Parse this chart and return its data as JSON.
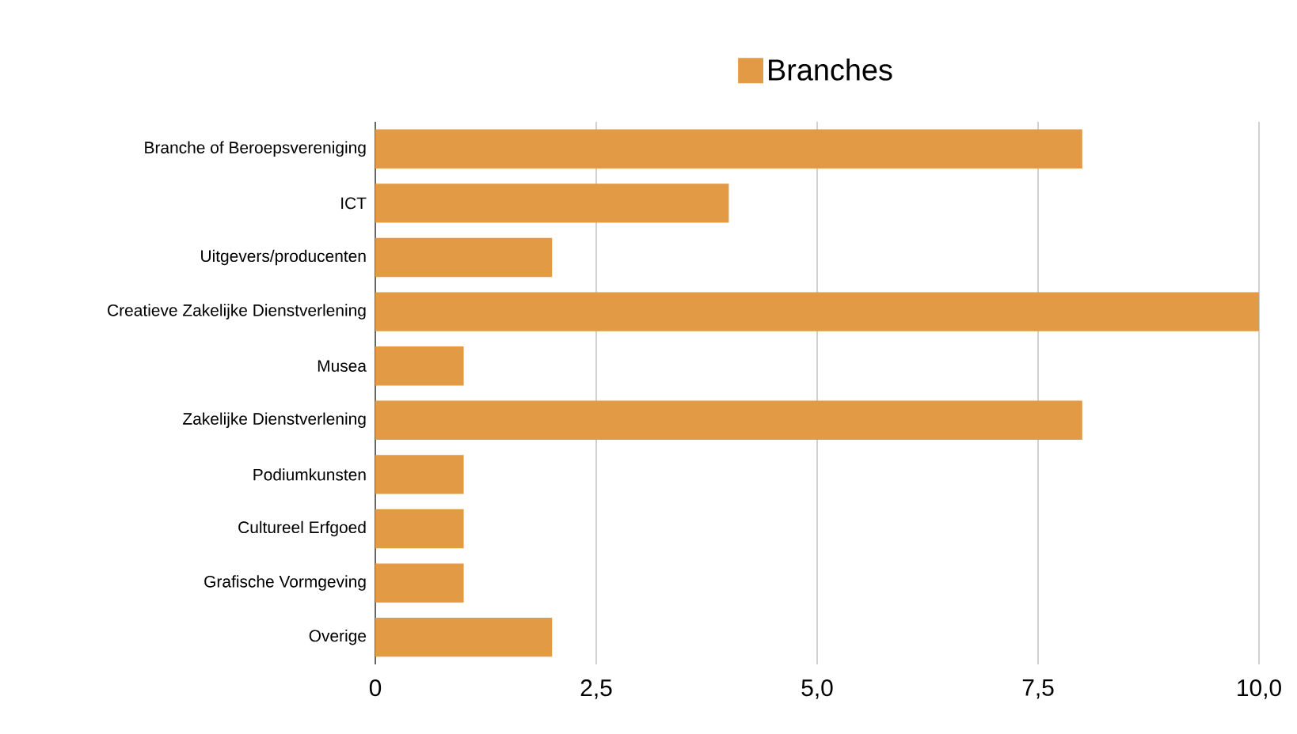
{
  "chart_data": {
    "type": "bar",
    "orientation": "horizontal",
    "categories": [
      "Branche of Beroepsvereniging",
      "ICT",
      "Uitgevers/producenten",
      "Creatieve Zakelijke Dienstverlening",
      "Musea",
      "Zakelijke Dienstverlening",
      "Podiumkunsten",
      "Cultureel Erfgoed",
      "Grafische Vormgeving",
      "Overige"
    ],
    "series": [
      {
        "name": "Branches",
        "color": "#e39a45",
        "values": [
          8,
          4,
          2,
          10,
          1,
          8,
          1,
          1,
          1,
          2
        ]
      }
    ],
    "xlim": [
      0,
      10
    ],
    "xticks": [
      0,
      {
        "value": 2.5,
        "label": "2,5"
      },
      {
        "value": 5,
        "label": "5,0"
      },
      {
        "value": 7.5,
        "label": "7,5"
      },
      {
        "value": 10,
        "label": "10,0"
      }
    ],
    "grid": "x",
    "legend": "top"
  }
}
